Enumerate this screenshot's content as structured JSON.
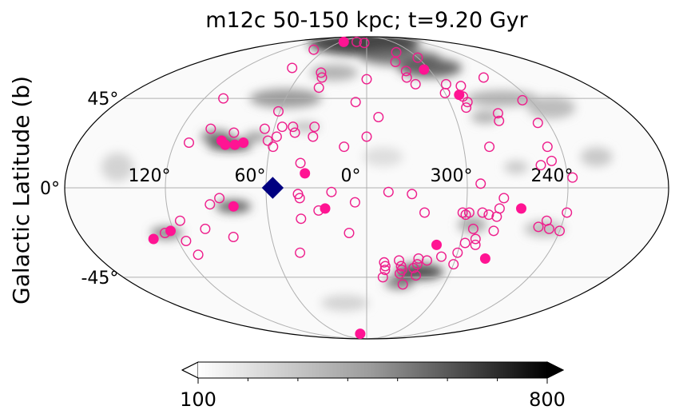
{
  "chart_data": {
    "type": "scatter",
    "projection": "mollweide",
    "title": "m12c 50-150 kpc; t=9.20 Gyr",
    "ylabel": "Galactic Latitude (b)",
    "xlabel": "",
    "lon_tick_labels": [
      "120°",
      "60°",
      "0°",
      "300°",
      "240°"
    ],
    "lat_tick_labels": [
      "45°",
      "0°",
      "-45°"
    ],
    "grid": true,
    "background_map": "grayscale density map",
    "colorbar": {
      "min": 100,
      "max": 800,
      "min_label": "100",
      "max_label": "800",
      "extend": "both",
      "colormap": "gray_r",
      "orientation": "horizontal",
      "placement": "bottom"
    },
    "marker_colors": {
      "open": "#ee1e8c",
      "filled": "#ff1493",
      "special": "#000080"
    },
    "series": [
      {
        "marker": "open-circle",
        "points": [
          [
            78,
            76
          ],
          [
            73,
            63
          ],
          [
            42,
            60
          ],
          [
            39,
            57
          ],
          [
            23,
            83
          ],
          [
            5,
            82
          ],
          [
            38,
            51
          ],
          [
            61,
            38
          ],
          [
            55,
            30
          ],
          [
            48,
            30
          ],
          [
            34,
            30
          ],
          [
            85,
            27
          ],
          [
            58,
            20
          ],
          [
            57,
            25
          ],
          [
            66,
            29
          ],
          [
            46,
            27
          ],
          [
            34,
            25
          ],
          [
            111,
            22
          ],
          [
            101,
            29
          ],
          [
            106,
            45
          ],
          [
            0,
            56
          ],
          [
            -35,
            57
          ],
          [
            -40,
            74
          ],
          [
            -37,
            61
          ],
          [
            -31,
            67
          ],
          [
            -60,
            70
          ],
          [
            -60,
            48
          ],
          [
            -76,
            52
          ],
          [
            -70,
            40
          ],
          [
            -73,
            43
          ],
          [
            -90,
            37
          ],
          [
            -88,
            33
          ],
          [
            -113,
            32
          ],
          [
            -102,
            57
          ],
          [
            -114,
            44
          ],
          [
            -112,
            20
          ],
          [
            -105,
            11
          ],
          [
            -112,
            13
          ],
          [
            -123,
            5
          ],
          [
            -76,
            20
          ],
          [
            -82,
            -5
          ],
          [
            -74,
            -13
          ],
          [
            -66,
            -20
          ],
          [
            -69,
            -25
          ],
          [
            -79,
            -21
          ],
          [
            -79,
            -14
          ],
          [
            -80,
            -10
          ],
          [
            -70,
            -28
          ],
          [
            -63,
            -27
          ],
          [
            -106,
            -19
          ],
          [
            -110,
            -16
          ],
          [
            -113,
            -20
          ],
          [
            -121,
            -12
          ],
          [
            -120,
            -21
          ],
          [
            -60,
            -32
          ],
          [
            -60,
            -38
          ],
          [
            -50,
            -34
          ],
          [
            -35,
            -35
          ],
          [
            -22,
            -36
          ],
          [
            -24,
            -39
          ],
          [
            -25,
            -41
          ],
          [
            -24,
            -43
          ],
          [
            -33,
            -40
          ],
          [
            -35,
            -38
          ],
          [
            -41,
            -36
          ],
          [
            -36,
            -44
          ],
          [
            -28,
            -49
          ],
          [
            -60,
            -13
          ],
          [
            -58,
            -12
          ],
          [
            -70,
            -12
          ],
          [
            -62,
            -12
          ],
          [
            40,
            -5
          ],
          [
            -35,
            -12
          ],
          [
            -27,
            -3
          ],
          [
            -13,
            -2
          ],
          [
            7,
            -7
          ],
          [
            21,
            -2
          ],
          [
            40,
            12
          ],
          [
            41,
            -3
          ],
          [
            29,
            -11
          ],
          [
            88,
            -5
          ],
          [
            94,
            -8
          ],
          [
            100,
            -20
          ],
          [
            114,
            -16
          ],
          [
            115,
            -26
          ],
          [
            126,
            -22
          ],
          [
            112,
            -33
          ],
          [
            0,
            25
          ],
          [
            11,
            -22
          ],
          [
            -12,
            -37
          ],
          [
            -13,
            -39
          ],
          [
            -13,
            -41
          ],
          [
            -12,
            -45
          ],
          [
            14,
            20
          ],
          [
            -8,
            35
          ],
          [
            8,
            43
          ],
          [
            40,
            -15
          ],
          [
            44,
            -32
          ],
          [
            -72,
            46
          ],
          [
            -40,
            53
          ],
          [
            -68,
            2
          ],
          [
            -65,
            53
          ],
          [
            84,
            -24
          ],
          [
            62,
            23
          ]
        ]
      },
      {
        "marker": "filled-circle",
        "points": [
          [
            53,
            83
          ],
          [
            -55,
            62
          ],
          [
            -70,
            47
          ],
          [
            91,
            23
          ],
          [
            88,
            21
          ],
          [
            82,
            21
          ],
          [
            77,
            22
          ],
          [
            37,
            7
          ],
          [
            80,
            -9
          ],
          [
            25,
            -10
          ],
          [
            -45,
            -28
          ],
          [
            -93,
            -10
          ],
          [
            -80,
            -35
          ],
          [
            135,
            -25
          ],
          [
            122,
            -21
          ],
          [
            15,
            -83
          ]
        ]
      },
      {
        "marker": "diamond",
        "points": [
          [
            56,
            0
          ]
        ]
      }
    ]
  }
}
